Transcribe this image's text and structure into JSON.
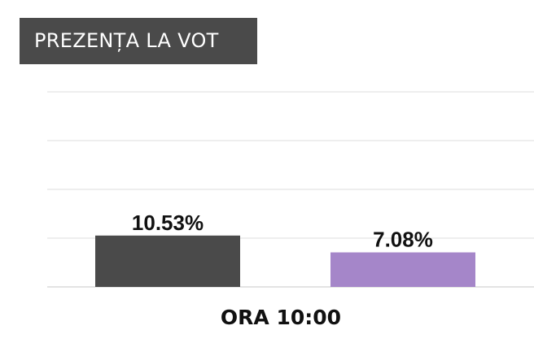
{
  "header": {
    "title": "PREZENȚA LA VOT"
  },
  "chart_data": {
    "type": "bar",
    "title": "PREZENȚA LA VOT",
    "categories": [
      "ORA 10:00"
    ],
    "series": [
      {
        "values": [
          10.53
        ],
        "label": "10.53%",
        "color": "#4a4a4a"
      },
      {
        "values": [
          7.08
        ],
        "label": "7.08%",
        "color": "#a586c9"
      }
    ],
    "ylim": [
      0,
      40
    ],
    "grid": true,
    "legend": "none"
  }
}
